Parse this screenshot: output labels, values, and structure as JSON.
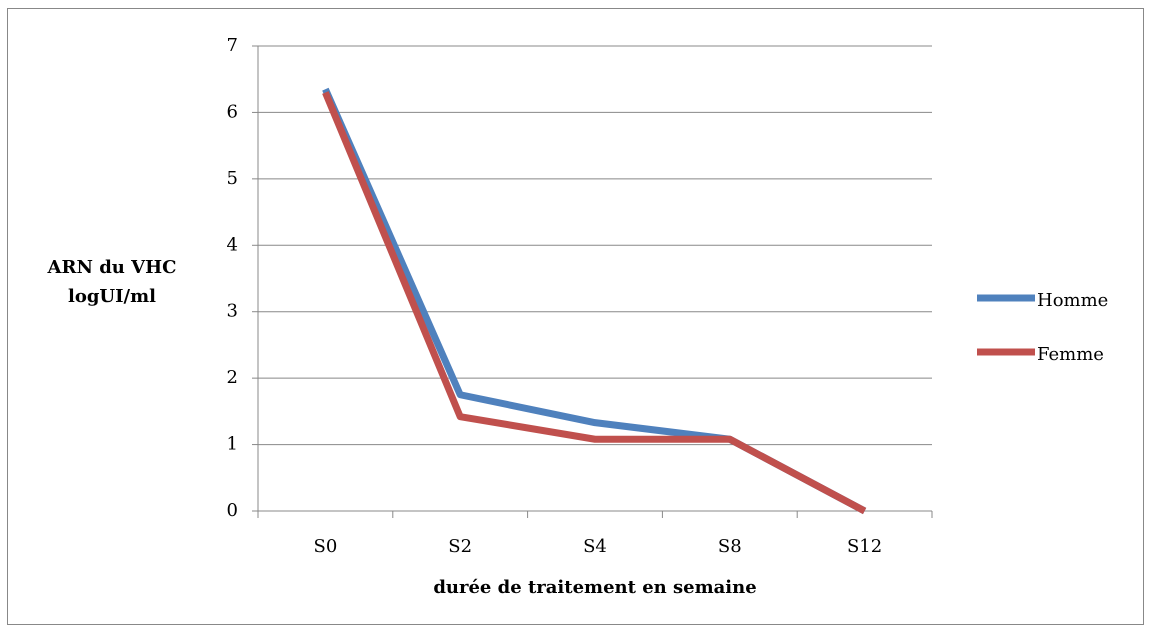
{
  "chart_data": {
    "type": "line",
    "categories": [
      "S0",
      "S2",
      "S4",
      "S8",
      "S12"
    ],
    "series": [
      {
        "name": "Homme",
        "color": "#4f81bd",
        "values": [
          6.35,
          1.75,
          1.33,
          1.08,
          0
        ]
      },
      {
        "name": "Femme",
        "color": "#c0504d",
        "values": [
          6.3,
          1.42,
          1.08,
          1.08,
          0
        ]
      }
    ],
    "ylabel": [
      "ARN du VHC",
      "logUI/ml"
    ],
    "xlabel": "durée de traitement en semaine",
    "ylim": [
      0,
      7
    ],
    "yticks": [
      0,
      1,
      2,
      3,
      4,
      5,
      6,
      7
    ],
    "grid": true,
    "legend": "right"
  }
}
